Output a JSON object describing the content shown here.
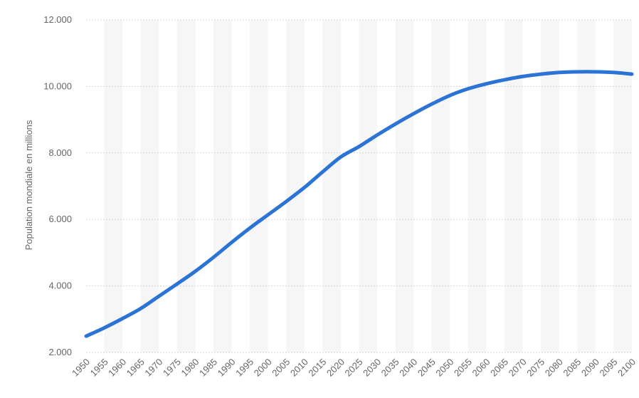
{
  "chart_data": {
    "type": "line",
    "ylabel": "Population mondiale en millions",
    "xlabel": "",
    "title": "",
    "grid": true,
    "xlim": [
      1950,
      2100
    ],
    "ylim": [
      2000,
      12000
    ],
    "y_ticks": [
      {
        "value": 2000,
        "label": "2.000"
      },
      {
        "value": 4000,
        "label": "4.000"
      },
      {
        "value": 6000,
        "label": "6.000"
      },
      {
        "value": 8000,
        "label": "8.000"
      },
      {
        "value": 10000,
        "label": "10.000"
      },
      {
        "value": 12000,
        "label": "12.000"
      }
    ],
    "x_ticks": [
      "1950",
      "1955",
      "1960",
      "1965",
      "1970",
      "1975",
      "1980",
      "1985",
      "1990",
      "1995",
      "2000",
      "2005",
      "2010",
      "2015",
      "2020",
      "2025",
      "2030",
      "2035",
      "2040",
      "2045",
      "2050",
      "2055",
      "2060",
      "2065",
      "2070",
      "2075",
      "2080",
      "2085",
      "2090",
      "2095",
      "2100"
    ],
    "series": [
      {
        "color": "#2b74d6",
        "x": [
          1950,
          1955,
          1960,
          1965,
          1970,
          1975,
          1980,
          1985,
          1990,
          1995,
          2000,
          2005,
          2010,
          2015,
          2020,
          2025,
          2030,
          2035,
          2040,
          2045,
          2050,
          2055,
          2060,
          2065,
          2070,
          2075,
          2080,
          2085,
          2090,
          2095,
          2100
        ],
        "y": [
          2490,
          2740,
          3020,
          3320,
          3690,
          4060,
          4440,
          4860,
          5310,
          5740,
          6140,
          6540,
          6960,
          7430,
          7880,
          8190,
          8540,
          8870,
          9180,
          9470,
          9730,
          9930,
          10080,
          10200,
          10300,
          10370,
          10420,
          10440,
          10440,
          10420,
          10370
        ]
      }
    ]
  }
}
